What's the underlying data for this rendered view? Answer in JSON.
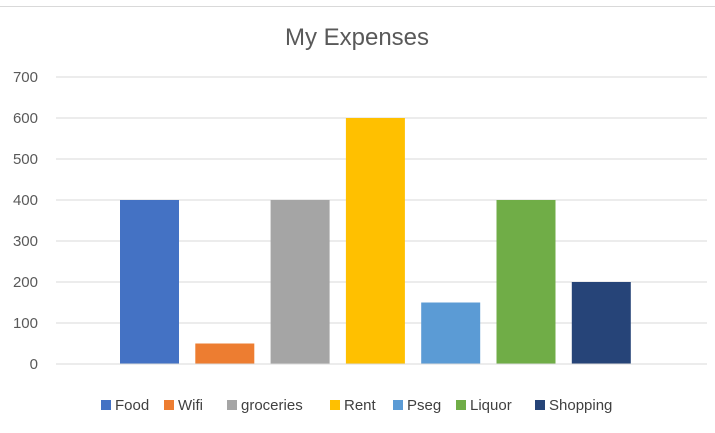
{
  "chart_data": {
    "type": "bar",
    "title": "My Expenses",
    "xlabel": "",
    "ylabel": "",
    "categories": [
      "Food",
      "Wifi",
      "groceries",
      "Rent",
      "Pseg",
      "Liquor",
      "Shopping"
    ],
    "values": [
      400,
      50,
      400,
      600,
      150,
      400,
      200
    ],
    "colors": [
      "#4472c4",
      "#ed7d31",
      "#a5a5a5",
      "#ffc000",
      "#5b9bd5",
      "#70ad47",
      "#264478"
    ],
    "ylim": [
      0,
      700
    ],
    "yticks": [
      0,
      100,
      200,
      300,
      400,
      500,
      600,
      700
    ],
    "grid": true,
    "legend_position": "bottom"
  }
}
